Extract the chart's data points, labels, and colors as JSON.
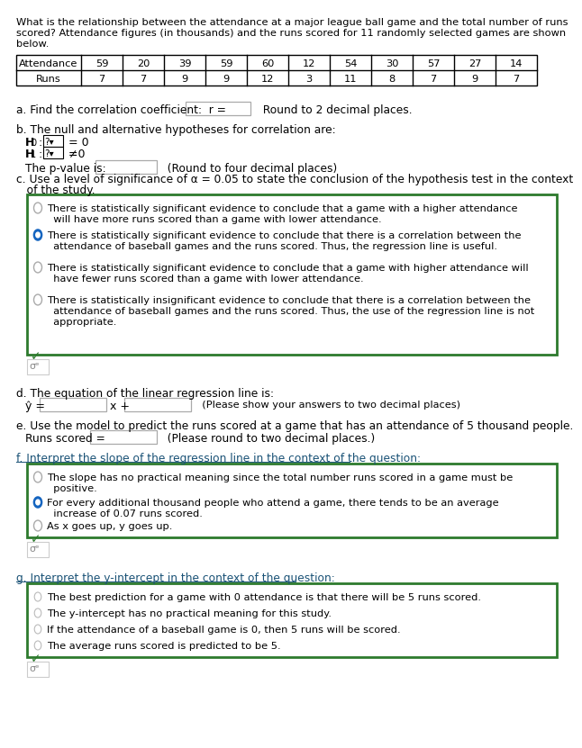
{
  "title_text": "What is the relationship between the attendance at a major league ball game and the total number of runs\nscored? Attendance figures (in thousands) and the runs scored for 11 randomly selected games are shown\nbelow.",
  "attendance": [
    59,
    20,
    39,
    59,
    60,
    12,
    54,
    30,
    57,
    27,
    14
  ],
  "runs": [
    7,
    7,
    9,
    9,
    12,
    3,
    11,
    8,
    7,
    9,
    7
  ],
  "section_a_prefix": "a. Find the correlation coefficient:  r =",
  "section_a_suffix": "Round to 2 decimal places.",
  "section_b_title": "b. The null and alternative hypotheses for correlation are:",
  "section_b_pval": "The p-value is:",
  "section_b_pval_suffix": "(Round to four decimal places)",
  "section_c_title": "c. Use a level of significance of α = 0.05 to state the conclusion of the hypothesis test in the context",
  "section_c_title2": "   of the study.",
  "section_c_options": [
    "There is statistically significant evidence to conclude that a game with a higher attendance\n      will have more runs scored than a game with lower attendance.",
    "There is statistically significant evidence to conclude that there is a correlation between the\n      attendance of baseball games and the runs scored. Thus, the regression line is useful.",
    "There is statistically significant evidence to conclude that a game with higher attendance will\n      have fewer runs scored than a game with lower attendance.",
    "There is statistically insignificant evidence to conclude that there is a correlation between the\n      attendance of baseball games and the runs scored. Thus, the use of the regression line is not\n      appropriate."
  ],
  "section_c_selected": 1,
  "section_d_title": "d. The equation of the linear regression line is:",
  "section_d_note": "(Please show your answers to two decimal places)",
  "section_e_title": "e. Use the model to predict the runs scored at a game that has an attendance of 5 thousand people.",
  "section_e_label": "Runs scored =",
  "section_e_suffix": "(Please round to two decimal places.)",
  "section_f_title": "f. Interpret the slope of the regression line in the context of the question:",
  "section_f_options": [
    "The slope has no practical meaning since the total number runs scored in a game must be\n      positive.",
    "For every additional thousand people who attend a game, there tends to be an average\n      increase of 0.07 runs scored.",
    "As x goes up, y goes up."
  ],
  "section_f_selected": 1,
  "section_g_title": "g. Interpret the y-intercept in the context of the question:",
  "section_g_options": [
    "The best prediction for a game with 0 attendance is that there will be 5 runs scored.",
    "The y-intercept has no practical meaning for this study.",
    "If the attendance of a baseball game is 0, then 5 runs will be scored.",
    "The average runs scored is predicted to be 5."
  ],
  "section_g_selected": -1,
  "bg_color": "#ffffff",
  "text_color": "#000000",
  "dark_text": "#1a1a1a",
  "green_border": "#2d7a2d",
  "selected_radio_color": "#1565c0",
  "unselected_radio_color": "#aaaaaa",
  "input_box_border": "#aaaaaa",
  "table_border": "#000000",
  "checkmark_color": "#2d7a2d",
  "sigma_color": "#888888",
  "header_color": "#1a5276",
  "bold_text": "#000000"
}
